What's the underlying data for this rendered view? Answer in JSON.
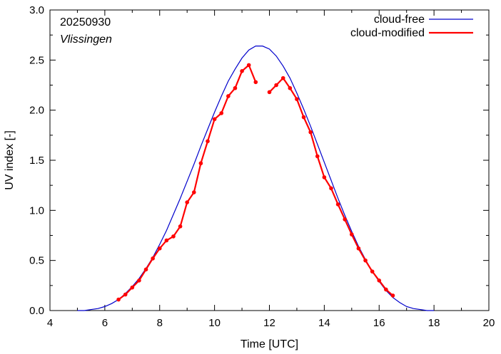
{
  "chart_data": {
    "type": "line",
    "xlabel": "Time  [UTC]",
    "ylabel": "UV index  [-]",
    "xlim": [
      4,
      20
    ],
    "ylim": [
      0,
      3.0
    ],
    "x_ticks": [
      4,
      6,
      8,
      10,
      12,
      14,
      16,
      18,
      20
    ],
    "x_tick_labels": [
      "4",
      "6",
      "8",
      "10",
      "12",
      "14",
      "16",
      "18",
      "20"
    ],
    "y_ticks": [
      0,
      0.5,
      1.0,
      1.5,
      2.0,
      2.5,
      3.0
    ],
    "y_tick_labels": [
      "0.0",
      "0.5",
      "1.0",
      "1.5",
      "2.0",
      "2.5",
      "3.0"
    ],
    "grid": false,
    "legend_position": "top-right",
    "annotations": {
      "date": "20250930",
      "station": "Vlissingen"
    },
    "series": [
      {
        "name": "cloud-free",
        "color": "#0000cc",
        "style": "line",
        "x": [
          5.0,
          5.25,
          5.5,
          5.75,
          6.0,
          6.25,
          6.5,
          6.75,
          7.0,
          7.25,
          7.5,
          7.75,
          8.0,
          8.25,
          8.5,
          8.75,
          9.0,
          9.25,
          9.5,
          9.75,
          10.0,
          10.25,
          10.5,
          10.75,
          11.0,
          11.25,
          11.5,
          11.75,
          12.0,
          12.25,
          12.5,
          12.75,
          13.0,
          13.25,
          13.5,
          13.75,
          14.0,
          14.25,
          14.5,
          14.75,
          15.0,
          15.25,
          15.5,
          15.75,
          16.0,
          16.25,
          16.5,
          16.75,
          17.0,
          17.25,
          17.5,
          17.75,
          18.0
        ],
        "y": [
          0.0,
          0.0,
          0.01,
          0.02,
          0.04,
          0.07,
          0.11,
          0.17,
          0.24,
          0.32,
          0.42,
          0.53,
          0.66,
          0.8,
          0.96,
          1.12,
          1.29,
          1.46,
          1.64,
          1.81,
          1.98,
          2.14,
          2.29,
          2.41,
          2.52,
          2.6,
          2.64,
          2.64,
          2.61,
          2.54,
          2.44,
          2.32,
          2.17,
          2.01,
          1.84,
          1.66,
          1.48,
          1.3,
          1.12,
          0.95,
          0.79,
          0.64,
          0.51,
          0.39,
          0.29,
          0.2,
          0.13,
          0.08,
          0.04,
          0.02,
          0.01,
          0.0,
          0.0
        ]
      },
      {
        "name": "cloud-modified",
        "color": "#ff0000",
        "style": "line+markers",
        "segments": [
          {
            "x": [
              6.5,
              6.75,
              7.0,
              7.25,
              7.5,
              7.75,
              8.0,
              8.25,
              8.5,
              8.75,
              9.0,
              9.25,
              9.5,
              9.75,
              10.0,
              10.25,
              10.5,
              10.75,
              11.0,
              11.25,
              11.5
            ],
            "y": [
              0.11,
              0.16,
              0.23,
              0.3,
              0.41,
              0.52,
              0.62,
              0.7,
              0.74,
              0.84,
              1.08,
              1.18,
              1.47,
              1.69,
              1.91,
              1.97,
              2.14,
              2.22,
              2.39,
              2.45,
              2.28
            ]
          },
          {
            "x": [
              12.0,
              12.25,
              12.5,
              12.75,
              13.0,
              13.25,
              13.5,
              13.75,
              14.0,
              14.25,
              14.5,
              14.75,
              15.0,
              15.25,
              15.5,
              15.75,
              16.0,
              16.25,
              16.5
            ],
            "y": [
              2.18,
              2.25,
              2.32,
              2.22,
              2.11,
              1.93,
              1.78,
              1.54,
              1.33,
              1.22,
              1.06,
              0.91,
              0.76,
              0.62,
              0.5,
              0.39,
              0.3,
              0.21,
              0.15
            ]
          }
        ]
      }
    ]
  },
  "colors": {
    "axis": "#000000",
    "cloud_free": "#0000cc",
    "cloud_modified": "#ff0000"
  }
}
